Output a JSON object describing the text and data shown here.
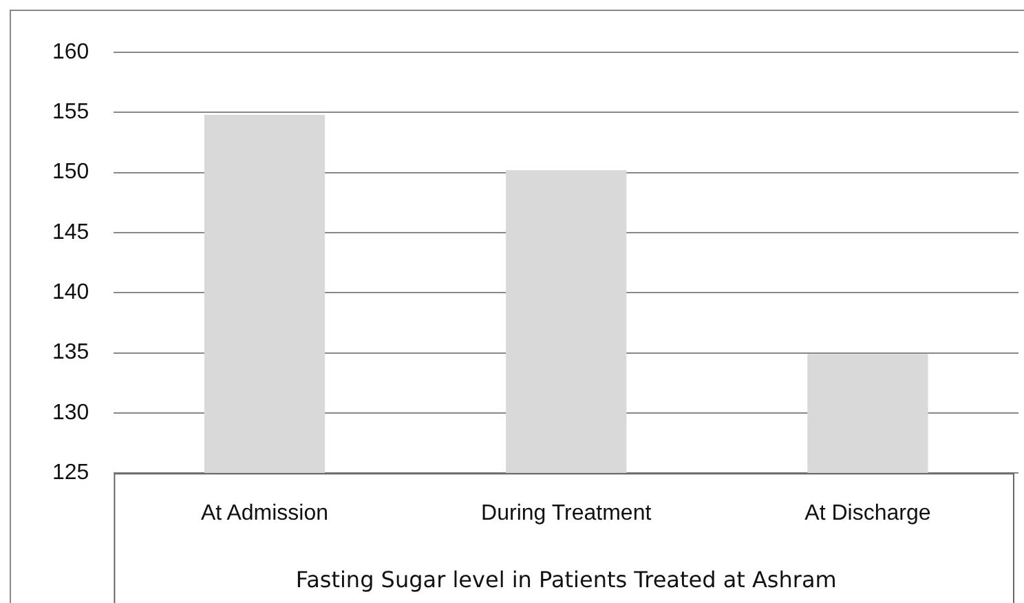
{
  "chart_data": {
    "type": "bar",
    "xlabel": "Fasting Sugar level in Patients Treated at Ashram",
    "categories": [
      "At Admission",
      "During Treatment",
      "At Discharge"
    ],
    "values": [
      154.8,
      150.2,
      134.9
    ],
    "color": "#d9d9d9",
    "ylim": [
      125,
      160
    ],
    "yticks": [
      125,
      130,
      135,
      140,
      145,
      150,
      155,
      160
    ],
    "grid": "y",
    "legend": false
  }
}
